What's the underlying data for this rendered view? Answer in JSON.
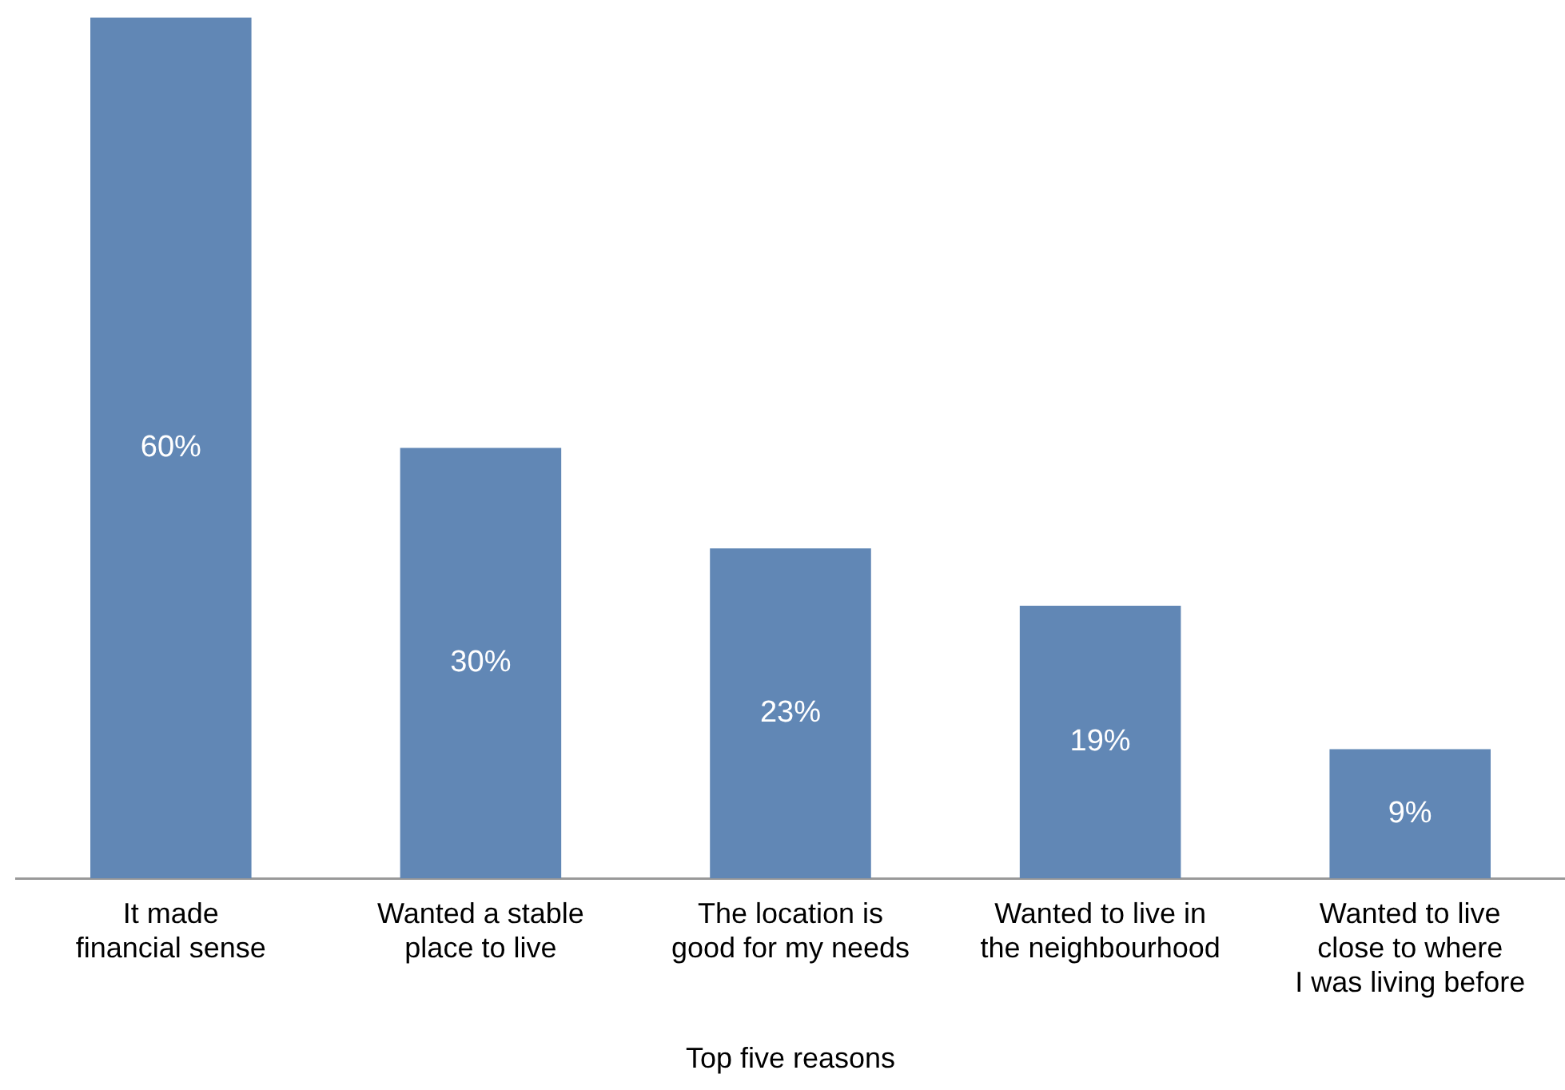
{
  "chart_data": {
    "type": "bar",
    "xlabel": "Top five reasons",
    "categories": [
      "It made\nfinancial sense",
      "Wanted a stable\nplace to live",
      "The location is\ngood for my needs",
      "Wanted to live in\nthe neighbourhood",
      "Wanted to live\nclose to where\nI was living before"
    ],
    "values": [
      60,
      30,
      23,
      19,
      9
    ],
    "value_labels": [
      "60%",
      "30%",
      "23%",
      "19%",
      "9%"
    ],
    "color": "#6187b5",
    "ylim": [
      0,
      60
    ],
    "tick_labels": "x",
    "grid": false,
    "legend": false
  }
}
